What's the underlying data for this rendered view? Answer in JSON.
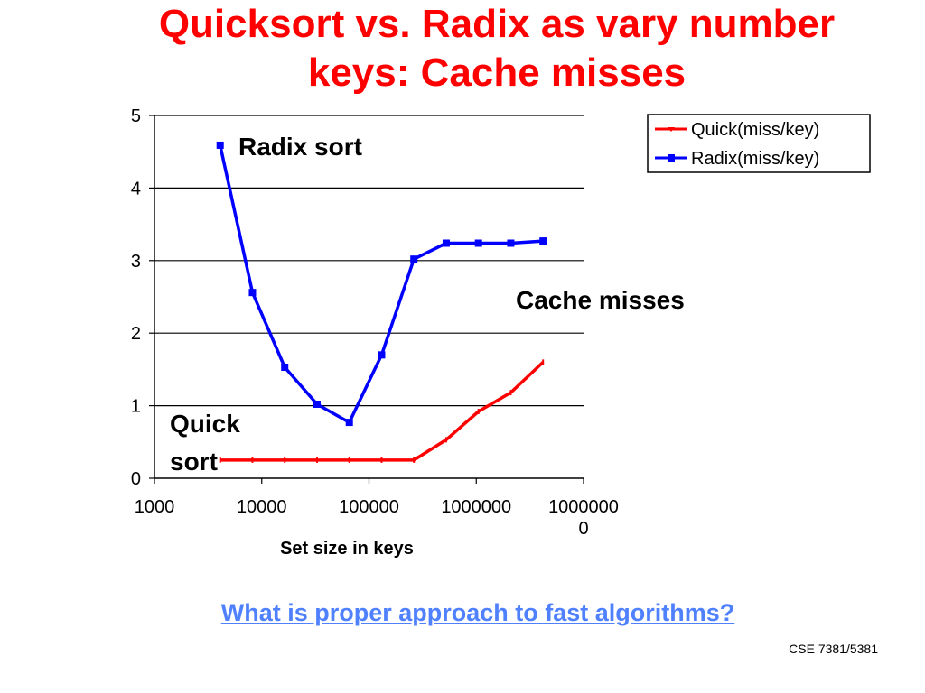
{
  "slide": {
    "title_line_1": "Quicksort vs. Radix as vary number",
    "title_line_2": "keys: Cache misses",
    "link_text": "What is proper approach to fast algorithms?",
    "footer": "CSE 7381/5381"
  },
  "chart_data": {
    "type": "line",
    "xscale": "log",
    "xlim": [
      1000,
      10000000
    ],
    "ylim": [
      0,
      5
    ],
    "yticks": [
      0,
      1,
      2,
      3,
      4,
      5
    ],
    "xtick_labels": [
      {
        "value": 1000,
        "lines": [
          "1000"
        ]
      },
      {
        "value": 10000,
        "lines": [
          "10000"
        ]
      },
      {
        "value": 100000,
        "lines": [
          "100000"
        ]
      },
      {
        "value": 1000000,
        "lines": [
          "1000000"
        ]
      },
      {
        "value": 10000000,
        "lines": [
          "1000000",
          "0"
        ]
      }
    ],
    "xlabel": "Set size in keys",
    "ylabel": "",
    "grid": "horizontal",
    "legend_position": "top-right",
    "x": [
      4096,
      8192,
      16384,
      32768,
      65536,
      131072,
      262144,
      524288,
      1048576,
      2097152,
      4194304
    ],
    "series": [
      {
        "name": "Quick(miss/key)",
        "color": "#ff0000",
        "values": [
          0.25,
          0.25,
          0.25,
          0.25,
          0.25,
          0.25,
          0.25,
          0.53,
          0.92,
          1.18,
          1.6
        ]
      },
      {
        "name": "Radix(miss/key)",
        "color": "#0000ff",
        "values": [
          4.59,
          2.56,
          1.53,
          1.02,
          0.77,
          1.7,
          3.02,
          3.24,
          3.24,
          3.24,
          3.27
        ]
      }
    ],
    "annotations": [
      {
        "id": "radix",
        "lines": [
          "Radix sort"
        ]
      },
      {
        "id": "cache",
        "lines": [
          "Cache misses"
        ]
      },
      {
        "id": "quick",
        "lines": [
          "Quick",
          "sort"
        ]
      }
    ]
  }
}
